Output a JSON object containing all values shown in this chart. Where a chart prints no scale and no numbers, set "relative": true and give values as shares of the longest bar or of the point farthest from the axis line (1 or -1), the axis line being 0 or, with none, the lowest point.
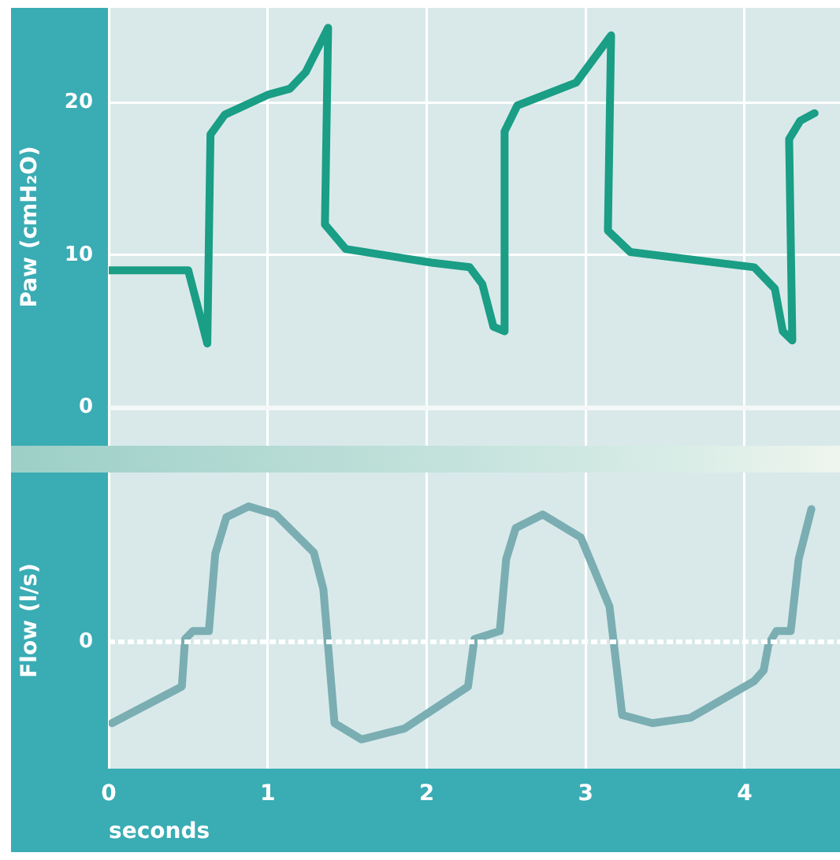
{
  "chart_data": [
    {
      "type": "line",
      "ylabel": "Paw (cmH₂O)",
      "xlim": [
        0,
        4.6
      ],
      "xticks": [
        0,
        1,
        2,
        3,
        4
      ],
      "ylim": [
        -2.5,
        26.2
      ],
      "yticks": [
        0,
        10,
        20
      ],
      "grid": true,
      "tick_labels": "y",
      "x": [
        0,
        0.5,
        0.62,
        0.64,
        0.73,
        1.0,
        1.14,
        1.24,
        1.38,
        1.36,
        1.49,
        2.03,
        2.27,
        2.35,
        2.42,
        2.49,
        2.49,
        2.57,
        2.94,
        3.16,
        3.14,
        3.28,
        4.06,
        4.19,
        4.24,
        4.3,
        4.28,
        4.35,
        4.44
      ],
      "series": [
        {
          "color": "#1a9e85",
          "values": [
            9.0,
            9.0,
            4.2,
            17.9,
            19.2,
            20.5,
            20.9,
            22.0,
            24.9,
            12.0,
            10.4,
            9.5,
            9.2,
            8.1,
            5.3,
            5.0,
            18.1,
            19.8,
            21.3,
            24.4,
            11.6,
            10.2,
            9.2,
            7.8,
            5.0,
            4.4,
            17.6,
            18.8,
            19.3
          ]
        }
      ]
    },
    {
      "type": "line",
      "xlabel": "seconds",
      "ylabel": "Flow (l/s)",
      "relative": true,
      "xlim": [
        0,
        4.6
      ],
      "xticks": [
        0,
        1,
        2,
        3,
        4
      ],
      "grid": "x",
      "tick_labels": "x",
      "ref_lines": [
        {
          "axis": "y",
          "value": 0,
          "label": "0"
        }
      ],
      "x": [
        0.02,
        0.46,
        0.48,
        0.53,
        0.63,
        0.67,
        0.74,
        0.88,
        1.05,
        1.29,
        1.35,
        1.42,
        1.59,
        1.86,
        2.26,
        2.3,
        2.46,
        2.5,
        2.56,
        2.73,
        2.97,
        3.15,
        3.23,
        3.42,
        3.66,
        4.06,
        4.12,
        4.15,
        4.2,
        4.29,
        4.34,
        4.42
      ],
      "series": [
        {
          "color": "#7aaeb3",
          "values": [
            -0.6,
            -0.33,
            0.02,
            0.08,
            0.08,
            0.65,
            0.92,
            1.0,
            0.94,
            0.66,
            0.39,
            -0.6,
            -0.72,
            -0.64,
            -0.33,
            0.02,
            0.08,
            0.61,
            0.84,
            0.94,
            0.77,
            0.26,
            -0.54,
            -0.6,
            -0.56,
            -0.29,
            -0.21,
            -0.02,
            0.08,
            0.08,
            0.61,
            0.98
          ]
        }
      ]
    }
  ]
}
